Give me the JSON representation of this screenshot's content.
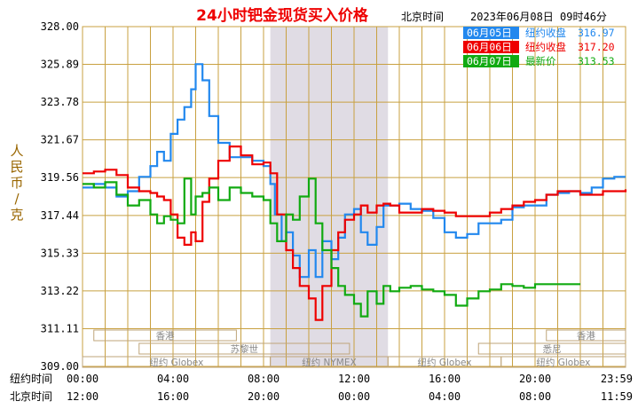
{
  "chart_data": {
    "type": "line",
    "title": "24小时钯金现货买入价格",
    "header_timezone": "北京时间",
    "header_timestamp": "2023年06月08日 09时46分",
    "ylabel": "人民币/克",
    "ylim": [
      309.0,
      328.0
    ],
    "y_ticks": [
      "328.00",
      "325.89",
      "323.78",
      "321.67",
      "319.56",
      "317.44",
      "315.33",
      "313.22",
      "311.11",
      "309.00"
    ],
    "y_tick_values": [
      328.0,
      325.89,
      323.78,
      321.67,
      319.56,
      317.44,
      315.33,
      313.22,
      311.11,
      309.0
    ],
    "x_range_hours": [
      0,
      24
    ],
    "x_row_labels": [
      "纽约时间",
      "北京时间"
    ],
    "x_ticks_newyork": [
      "00:00",
      "04:00",
      "08:00",
      "12:00",
      "16:00",
      "20:00",
      "23:59"
    ],
    "x_ticks_beijing": [
      "12:00",
      "16:00",
      "20:00",
      "00:00",
      "04:00",
      "08:00",
      "11:59"
    ],
    "x_tick_hours": [
      0,
      4,
      8,
      12,
      16,
      20,
      23.98
    ],
    "nymex_session_hours": [
      8.3,
      13.5
    ],
    "markets": [
      {
        "label": "香港",
        "start": 0.5,
        "end": 6.8
      },
      {
        "label": "香港",
        "start": 20.5,
        "end": 24
      },
      {
        "label": "苏黎世",
        "start": 2.5,
        "end": 11.8
      },
      {
        "label": "悉尼",
        "start": 17.5,
        "end": 24
      },
      {
        "label": "纽约 Globex",
        "start": 0,
        "end": 8.3
      },
      {
        "label": "纽约 NYMEX",
        "start": 8.3,
        "end": 13.5
      },
      {
        "label": "纽约 Globex",
        "start": 13.5,
        "end": 18.5
      },
      {
        "label": "纽约 Globex",
        "start": 18.5,
        "end": 24
      }
    ],
    "legend_placement": "top-right",
    "legend": [
      {
        "date": "06月05日",
        "label": "纽约收盘",
        "value": "316.97",
        "color": "#2288ee"
      },
      {
        "date": "06月06日",
        "label": "纽约收盘",
        "value": "317.20",
        "color": "#ee0000"
      },
      {
        "date": "06月07日",
        "label": "最新价",
        "value": "313.53",
        "color": "#11aa11"
      }
    ],
    "colors": {
      "grid": "#c8a040",
      "shade": "#e0dce4",
      "axis_text": "#000000",
      "ylabel": "#996600",
      "title": "#ee0000",
      "legend_date": "#ffffff"
    },
    "series": [
      {
        "name": "06月05日",
        "color": "#2288ee",
        "x": [
          0.0,
          0.5,
          1.0,
          1.5,
          2.0,
          2.5,
          3.0,
          3.3,
          3.6,
          3.9,
          4.2,
          4.5,
          4.8,
          5.0,
          5.3,
          5.6,
          6.0,
          6.5,
          7.0,
          7.5,
          8.0,
          8.3,
          8.5,
          8.8,
          9.0,
          9.3,
          9.6,
          10.0,
          10.3,
          10.6,
          11.0,
          11.3,
          11.6,
          12.0,
          12.3,
          12.6,
          13.0,
          13.3,
          13.6,
          14.0,
          14.5,
          15.0,
          15.5,
          16.0,
          16.5,
          17.0,
          17.5,
          18.0,
          18.5,
          19.0,
          19.5,
          20.0,
          20.5,
          21.0,
          21.5,
          22.0,
          22.5,
          23.0,
          23.5,
          24.0
        ],
        "y": [
          319.0,
          319.2,
          319.0,
          318.5,
          318.8,
          319.6,
          320.2,
          321.0,
          320.5,
          322.0,
          322.8,
          323.5,
          324.5,
          325.9,
          325.0,
          323.0,
          321.5,
          320.7,
          320.7,
          320.5,
          320.2,
          319.2,
          317.5,
          316.0,
          316.5,
          315.2,
          314.0,
          315.5,
          314.0,
          316.0,
          315.0,
          316.2,
          317.5,
          317.8,
          316.5,
          315.8,
          316.8,
          318.0,
          318.0,
          318.1,
          317.8,
          317.7,
          317.3,
          316.5,
          316.2,
          316.4,
          317.0,
          317.0,
          317.2,
          317.9,
          318.0,
          318.0,
          318.6,
          318.7,
          318.8,
          318.7,
          319.0,
          319.5,
          319.6,
          319.6
        ]
      },
      {
        "name": "06月06日",
        "color": "#ee0000",
        "x": [
          0.0,
          0.5,
          1.0,
          1.5,
          2.0,
          2.5,
          3.0,
          3.3,
          3.6,
          3.9,
          4.2,
          4.5,
          4.8,
          5.0,
          5.3,
          5.6,
          6.0,
          6.5,
          7.0,
          7.5,
          8.0,
          8.3,
          8.6,
          9.0,
          9.3,
          9.6,
          10.0,
          10.3,
          10.6,
          11.0,
          11.3,
          11.6,
          12.0,
          12.3,
          12.6,
          13.0,
          13.3,
          13.6,
          14.0,
          14.5,
          15.0,
          15.5,
          16.0,
          16.5,
          17.0,
          17.5,
          18.0,
          18.5,
          19.0,
          19.5,
          20.0,
          20.5,
          21.0,
          21.5,
          22.0,
          22.5,
          23.0,
          23.5,
          24.0
        ],
        "y": [
          319.8,
          319.9,
          320.0,
          319.7,
          319.0,
          318.8,
          318.7,
          318.5,
          318.3,
          317.5,
          316.2,
          315.8,
          316.5,
          316.0,
          318.2,
          319.5,
          320.5,
          321.3,
          320.8,
          320.3,
          320.4,
          319.8,
          317.5,
          315.5,
          314.5,
          313.5,
          312.8,
          311.6,
          313.5,
          315.5,
          316.5,
          317.2,
          317.5,
          318.0,
          317.6,
          318.0,
          318.1,
          318.0,
          317.6,
          317.6,
          317.8,
          317.7,
          317.6,
          317.4,
          317.4,
          317.4,
          317.6,
          317.8,
          318.0,
          318.2,
          318.3,
          318.6,
          318.8,
          318.8,
          318.6,
          318.6,
          318.8,
          318.8,
          318.9
        ]
      },
      {
        "name": "06月07日",
        "color": "#11aa11",
        "x": [
          0.0,
          0.5,
          1.0,
          1.5,
          2.0,
          2.5,
          3.0,
          3.3,
          3.6,
          3.9,
          4.2,
          4.5,
          4.8,
          5.0,
          5.3,
          5.6,
          6.0,
          6.5,
          7.0,
          7.5,
          8.0,
          8.3,
          8.6,
          9.0,
          9.3,
          9.6,
          10.0,
          10.3,
          10.6,
          11.0,
          11.3,
          11.6,
          12.0,
          12.3,
          12.6,
          13.0,
          13.3,
          13.6,
          14.0,
          14.5,
          15.0,
          15.5,
          16.0,
          16.5,
          17.0,
          17.5,
          18.0,
          18.5,
          19.0,
          19.5,
          20.0,
          20.5,
          21.0,
          21.5,
          22.0
        ],
        "y": [
          319.2,
          319.0,
          319.3,
          318.6,
          318.0,
          318.3,
          317.5,
          317.0,
          317.4,
          317.2,
          317.0,
          319.5,
          317.5,
          318.5,
          318.7,
          319.0,
          318.3,
          319.0,
          318.7,
          318.5,
          318.3,
          317.0,
          316.0,
          317.5,
          317.2,
          318.5,
          319.5,
          317.0,
          315.5,
          314.5,
          313.5,
          313.0,
          312.5,
          311.8,
          313.2,
          312.5,
          313.5,
          313.2,
          313.4,
          313.5,
          313.3,
          313.2,
          313.0,
          312.4,
          312.8,
          313.2,
          313.3,
          313.6,
          313.5,
          313.4,
          313.6,
          313.6,
          313.6,
          313.6,
          313.6
        ]
      }
    ]
  }
}
